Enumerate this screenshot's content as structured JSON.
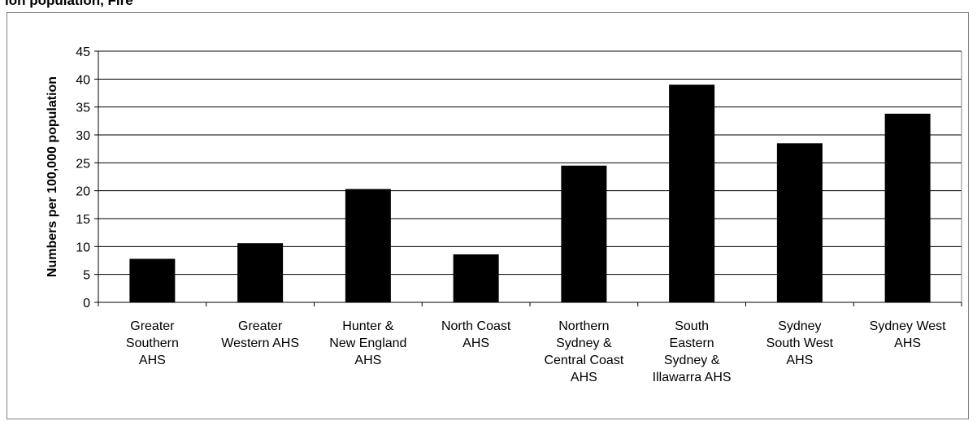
{
  "caption": "ion population, Fire",
  "chart_data": {
    "type": "bar",
    "title": "",
    "xlabel": "",
    "ylabel": "Numbers per 100,000 population",
    "ylim": [
      0,
      45
    ],
    "yticks": [
      0,
      5,
      10,
      15,
      20,
      25,
      30,
      35,
      40,
      45
    ],
    "grid": "horizontal",
    "legend": "none",
    "categories": [
      [
        "Greater",
        "Southern",
        "AHS"
      ],
      [
        "Greater",
        "Western AHS"
      ],
      [
        "Hunter &",
        "New England",
        "AHS"
      ],
      [
        "North Coast",
        "AHS"
      ],
      [
        "Northern",
        "Sydney &",
        "Central Coast",
        "AHS"
      ],
      [
        "South",
        "Eastern",
        "Sydney &",
        "Illawarra AHS"
      ],
      [
        "Sydney",
        "South West",
        "AHS"
      ],
      [
        "Sydney West",
        "AHS"
      ]
    ],
    "values": [
      7.8,
      10.6,
      20.3,
      8.6,
      24.5,
      39.0,
      28.5,
      33.8
    ],
    "bar_color": "#000000",
    "gridline_color": "#000000",
    "axis_color": "#000000"
  }
}
